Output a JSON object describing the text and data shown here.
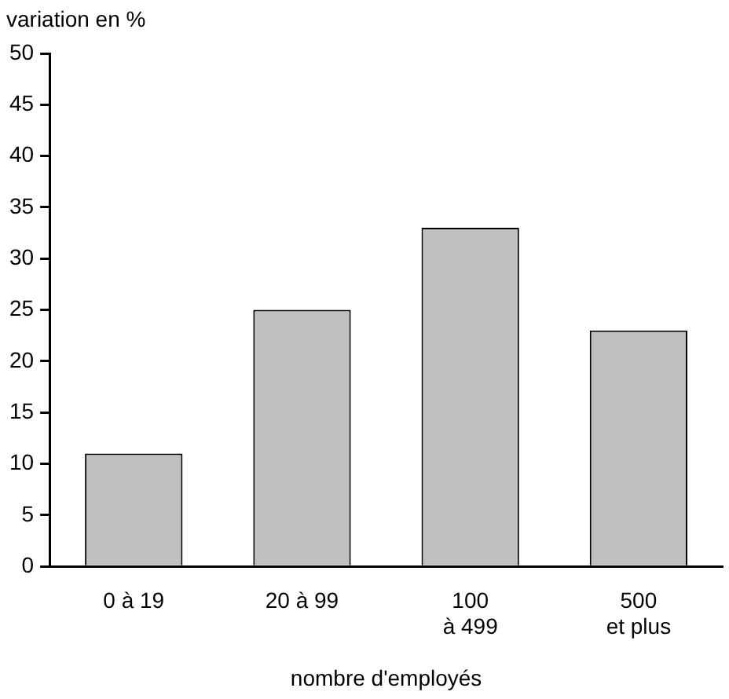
{
  "chart_data": {
    "type": "bar",
    "ylabel": "variation en %",
    "xlabel": "nombre d'employés",
    "categories": [
      "0 à 19",
      "20 à 99",
      "100\nà 499",
      "500\net plus"
    ],
    "values": [
      11,
      25,
      33,
      23
    ],
    "color": "#c0c0c0",
    "ylim": [
      0,
      50
    ],
    "yticks": [
      0,
      5,
      10,
      15,
      20,
      25,
      30,
      35,
      40,
      45,
      50
    ],
    "grid": false,
    "legend": false
  }
}
